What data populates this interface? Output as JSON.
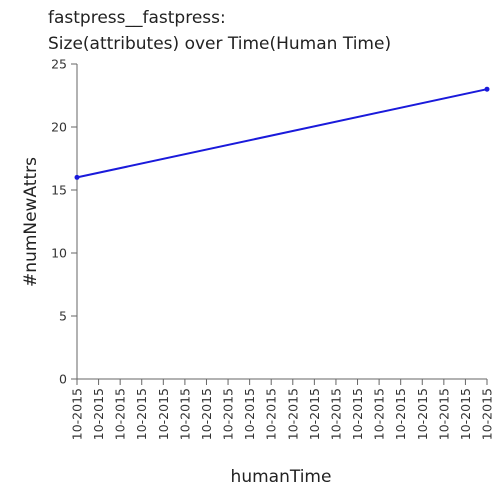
{
  "chart_data": {
    "type": "line",
    "title": [
      "fastpress__fastpress:",
      "Size(attributes) over Time(Human Time)"
    ],
    "xlabel": "humanTime",
    "ylabel": "#numNewAttrs",
    "x_categories": [
      "10-2015",
      "10-2015",
      "10-2015",
      "10-2015",
      "10-2015",
      "10-2015",
      "10-2015",
      "10-2015",
      "10-2015",
      "10-2015",
      "10-2015",
      "10-2015",
      "10-2015",
      "10-2015",
      "10-2015",
      "10-2015",
      "10-2015",
      "10-2015",
      "10-2015",
      "10-2015"
    ],
    "ylim": [
      0,
      25
    ],
    "yticks": [
      0,
      5,
      10,
      15,
      20,
      25
    ],
    "series": [
      {
        "points": [
          {
            "x": 0,
            "y": 16
          },
          {
            "x": 19,
            "y": 23
          }
        ]
      }
    ],
    "colors": {
      "line": "#1a1adb",
      "axis": "#666666"
    },
    "grid": false
  }
}
